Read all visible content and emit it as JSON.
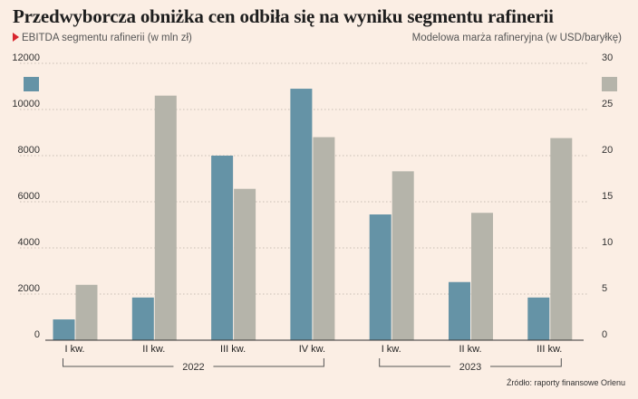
{
  "title": "Przedwyborcza obniżka cen odbiła się na wyniku segmentu rafinerii",
  "left_axis_label": "EBITDA segmentu rafinerii (w mln zł)",
  "right_axis_label": "Modelowa marża rafineryjna (w USD/baryłkę)",
  "source": "Źródło: raporty finansowe Orlenu",
  "colors": {
    "background": "#fbeee4",
    "ebitda": "#6593a6",
    "margin": "#b5b4aa",
    "marker": "#d8262e",
    "grid": "#c9bdb3"
  },
  "chart_data": {
    "type": "bar",
    "categories": [
      "I kw.",
      "II kw.",
      "III kw.",
      "IV kw.",
      "I kw.",
      "II kw.",
      "III kw."
    ],
    "groups": [
      {
        "label": "2022",
        "from": 0,
        "to": 3
      },
      {
        "label": "2023",
        "from": 4,
        "to": 6
      }
    ],
    "series": [
      {
        "axis": "left",
        "values": [
          900,
          1850,
          8000,
          10900,
          5450,
          2520,
          1850
        ]
      },
      {
        "axis": "right",
        "values": [
          6,
          26.5,
          16.4,
          22,
          18.3,
          13.8,
          21.9
        ]
      }
    ],
    "ylim_left": [
      0,
      12000
    ],
    "yticks_left": [
      "0",
      "2000",
      "4000",
      "6000",
      "8000",
      "10000",
      "12000"
    ],
    "ylim_right": [
      0,
      30
    ],
    "yticks_right": [
      "0",
      "5",
      "10",
      "15",
      "20",
      "25",
      "30"
    ],
    "grid": true,
    "legend": "top swatches at both axes"
  }
}
